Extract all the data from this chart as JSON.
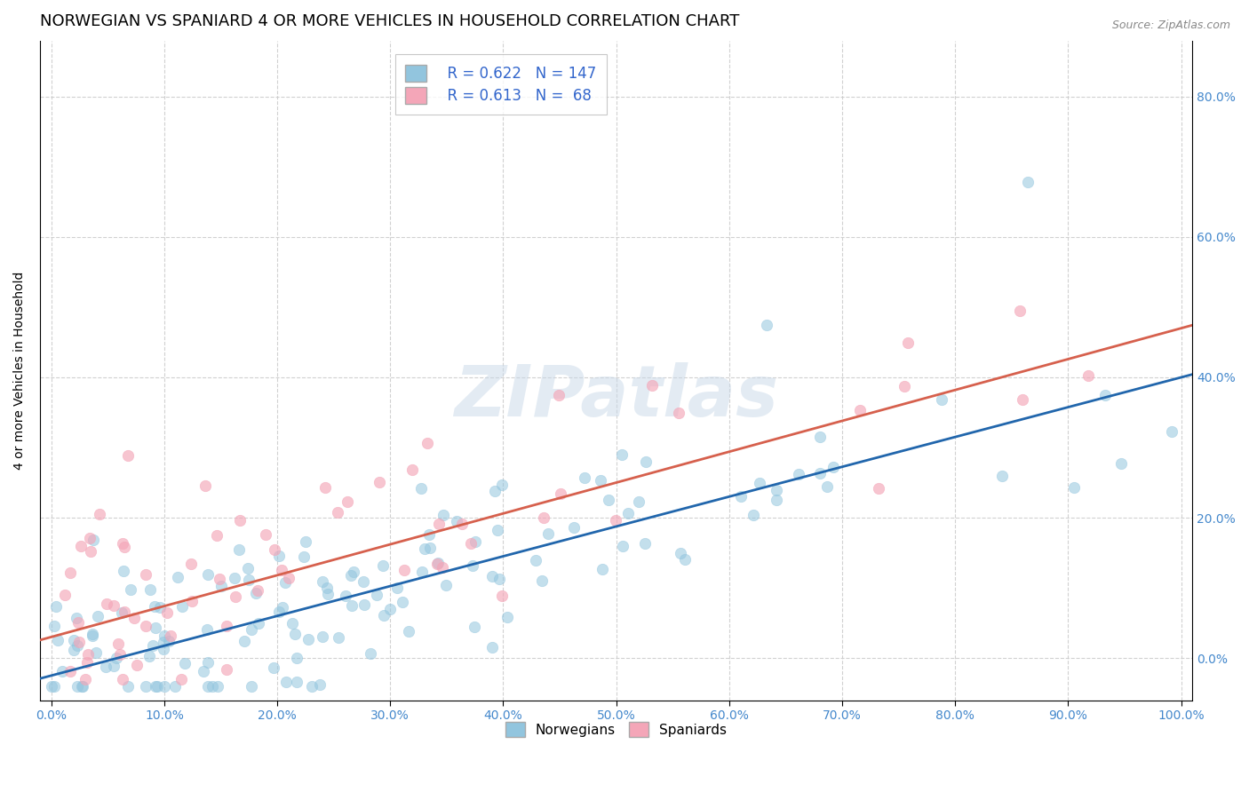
{
  "title": "NORWEGIAN VS SPANIARD 4 OR MORE VEHICLES IN HOUSEHOLD CORRELATION CHART",
  "source": "Source: ZipAtlas.com",
  "ylabel": "4 or more Vehicles in Household",
  "watermark": "ZIPatlas",
  "norwegian_R": 0.622,
  "norwegian_N": 147,
  "spaniard_R": 0.613,
  "spaniard_N": 68,
  "blue_color": "#92c5de",
  "pink_color": "#f4a6b8",
  "blue_line_color": "#2166ac",
  "pink_line_color": "#d6604d",
  "legend_blue_label": "Norwegians",
  "legend_pink_label": "Spaniards",
  "xlim": [
    -0.01,
    1.01
  ],
  "ylim": [
    -0.06,
    0.88
  ],
  "background_color": "#ffffff",
  "grid_color": "#cccccc",
  "title_fontsize": 13,
  "axis_label_fontsize": 10,
  "tick_fontsize": 10,
  "norw_line_intercept": -0.025,
  "norw_line_slope": 0.425,
  "span_line_intercept": 0.03,
  "span_line_slope": 0.44
}
